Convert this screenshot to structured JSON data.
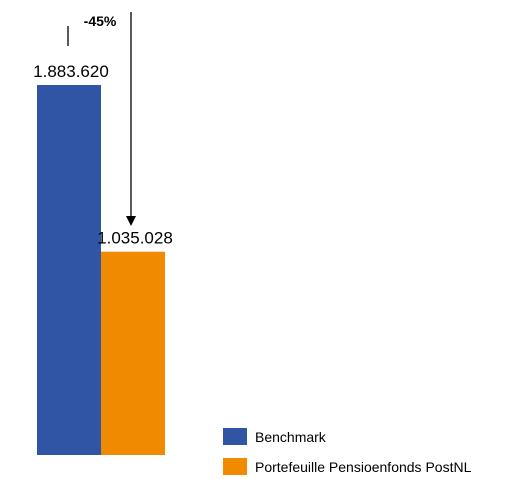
{
  "chart_data": {
    "type": "bar",
    "ylim": [
      0,
      2000000
    ],
    "grid": false,
    "legend_position": "bottom-right",
    "series": [
      {
        "name": "Benchmark",
        "value": 1883620,
        "label": "1.883.620",
        "color": "#2F55A4"
      },
      {
        "name": "Portefeuille Pensioenfonds PostNL",
        "value": 1035028,
        "label": "1.035.028",
        "color": "#F08A00"
      }
    ],
    "annotation": {
      "text": "-45%"
    }
  }
}
